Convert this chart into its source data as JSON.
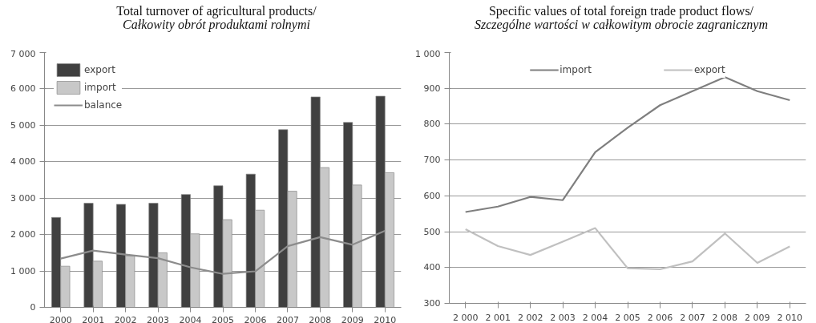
{
  "chart_data": [
    {
      "type": "bar",
      "title": "Total turnover of agricultural products/",
      "subtitle": "Całkowity obrót produktami rolnymi",
      "categories": [
        "2000",
        "2001",
        "2002",
        "2003",
        "2004",
        "2005",
        "2006",
        "2007",
        "2008",
        "2009",
        "2010"
      ],
      "series": [
        {
          "name": "export",
          "color": "#404040",
          "values": [
            2470,
            2860,
            2830,
            2860,
            3100,
            3340,
            3660,
            4880,
            5780,
            5080,
            5800
          ]
        },
        {
          "name": "import",
          "color": "#c8c8c8",
          "values": [
            1130,
            1270,
            1410,
            1500,
            2020,
            2410,
            2670,
            3190,
            3840,
            3360,
            3700
          ]
        },
        {
          "name": "balance",
          "type": "line",
          "color": "#8c8c8c",
          "values": [
            1340,
            1560,
            1450,
            1350,
            1100,
            920,
            990,
            1680,
            1930,
            1720,
            2100
          ]
        }
      ],
      "ylim": [
        0,
        7000
      ],
      "yticks": [
        {
          "value": 0,
          "label": "0"
        },
        {
          "value": 1000,
          "label": "1 000"
        },
        {
          "value": 2000,
          "label": "2 000"
        },
        {
          "value": 3000,
          "label": "3 000"
        },
        {
          "value": 4000,
          "label": "4 000"
        },
        {
          "value": 5000,
          "label": "5 000"
        },
        {
          "value": 6000,
          "label": "6 000"
        },
        {
          "value": 7000,
          "label": "7 000"
        }
      ],
      "grid": "y",
      "legend": "top left"
    },
    {
      "type": "line",
      "title": "Specific values of total foreign trade product flows/",
      "subtitle": "Szczególne wartości w całkowitym obrocie zagranicznym",
      "categories": [
        "2 000",
        "2 001",
        "2 002",
        "2 003",
        "2 004",
        "2 005",
        "2 006",
        "2 007",
        "2 008",
        "2 009",
        "2 010"
      ],
      "series": [
        {
          "name": "import",
          "color": "#7f7f7f",
          "values": [
            555,
            570,
            597,
            588,
            722,
            790,
            853,
            892,
            931,
            892,
            867
          ]
        },
        {
          "name": "export",
          "color": "#c0c0c0",
          "values": [
            507,
            460,
            435,
            472,
            510,
            398,
            395,
            417,
            495,
            413,
            459
          ]
        }
      ],
      "ylim": [
        300,
        1000
      ],
      "yticks": [
        300,
        400,
        500,
        600,
        700,
        800,
        900,
        {
          "value": 1000,
          "label": "1 000"
        }
      ],
      "grid": "y",
      "legend": "top"
    }
  ]
}
